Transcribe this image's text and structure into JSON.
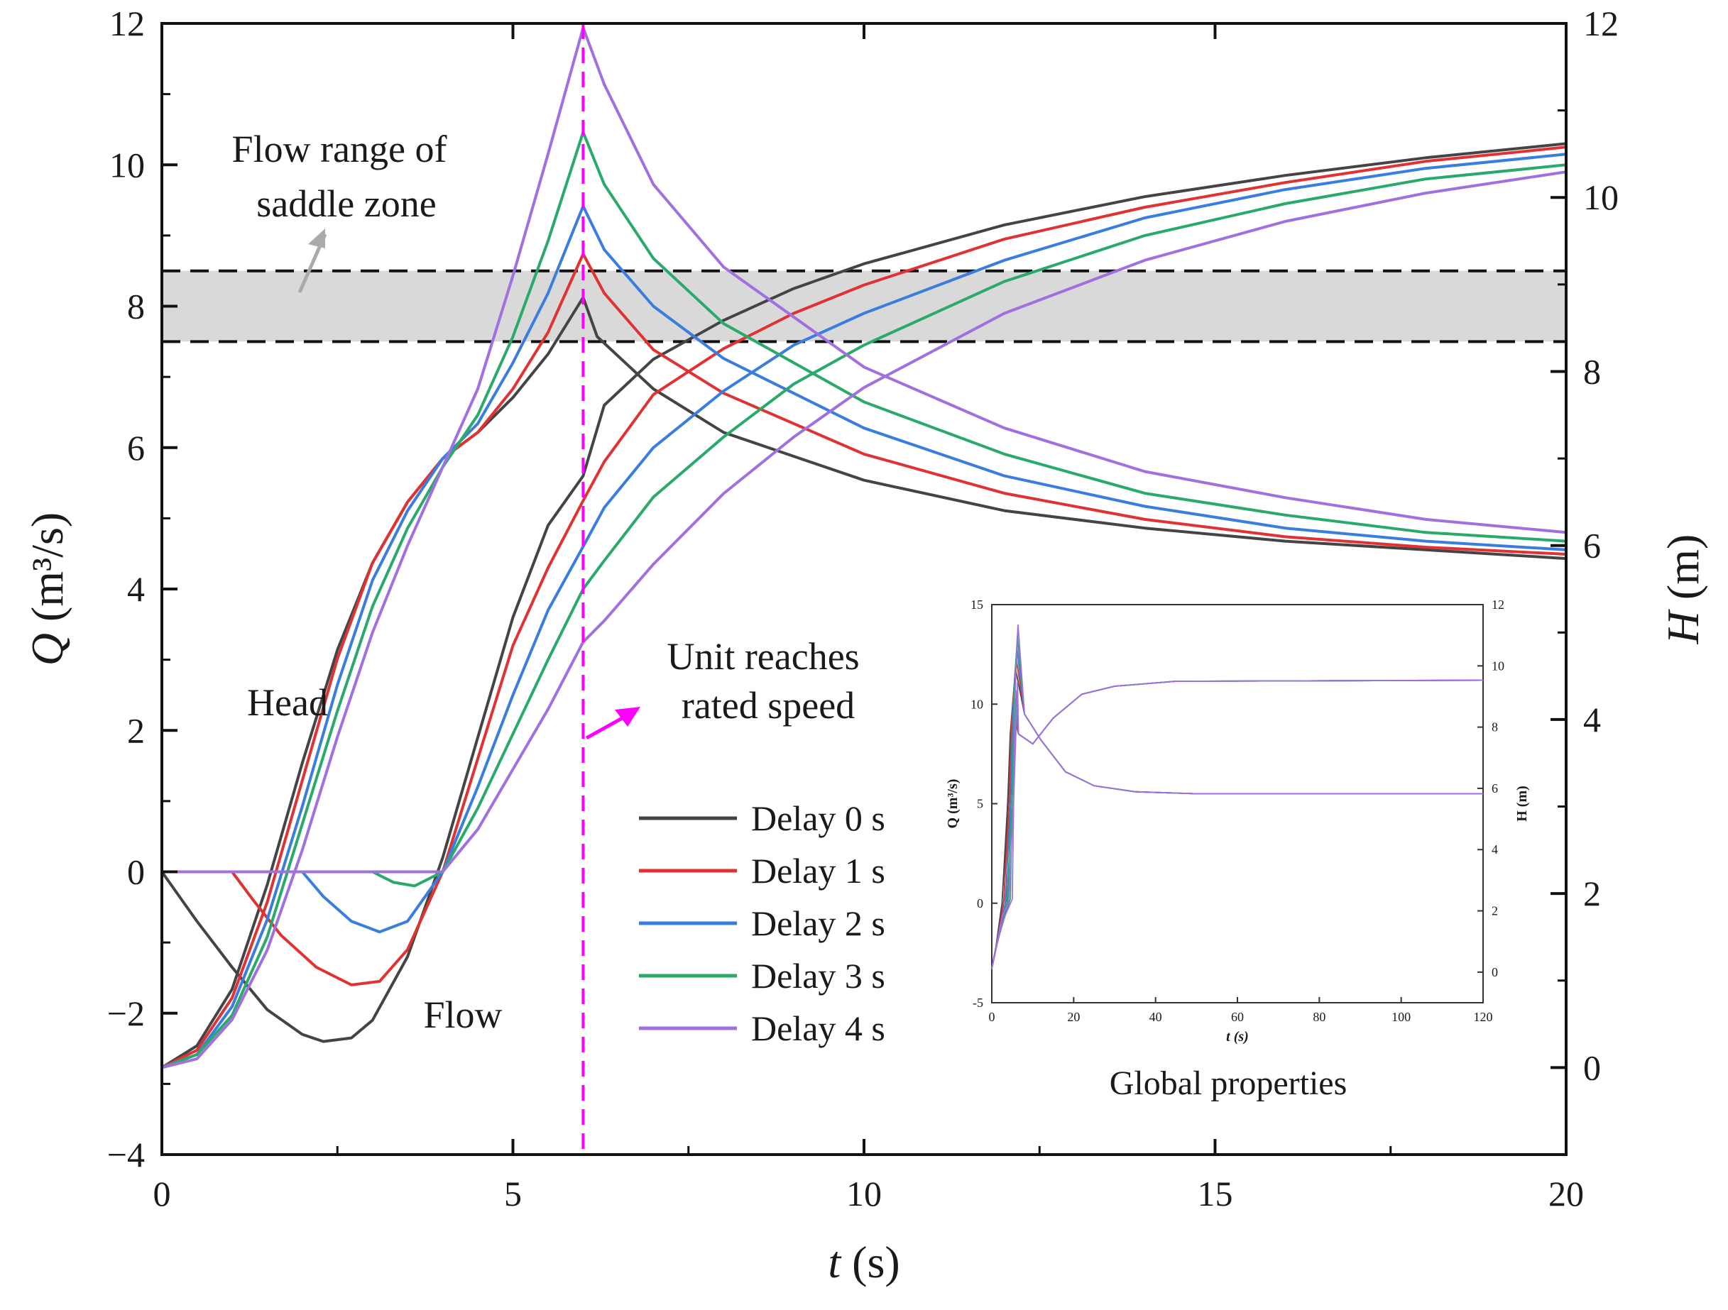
{
  "chart_data": {
    "type": "line",
    "x_axis": {
      "label_var": "t",
      "label_unit": " (s)",
      "range": [
        0,
        20
      ],
      "ticks": [
        0,
        5,
        10,
        15,
        20
      ]
    },
    "y_left": {
      "label_var": "Q",
      "label_unit": " (m³/s)",
      "range": [
        -4,
        12
      ],
      "ticks": [
        -4,
        -2,
        0,
        2,
        4,
        6,
        8,
        10,
        12
      ],
      "tick_labels": [
        "−4",
        "−2",
        "0",
        "2",
        "4",
        "6",
        "8",
        "10",
        "12"
      ]
    },
    "y_right": {
      "label_var": "H",
      "label_unit": " (m)",
      "range": [
        -1.0,
        12
      ],
      "ticks": [
        0,
        2,
        4,
        6,
        8,
        10,
        12
      ],
      "tick_labels": [
        "0",
        "2",
        "4",
        "6",
        "8",
        "10",
        "12"
      ]
    },
    "saddle_zone": {
      "q_low": 7.5,
      "q_high": 8.5,
      "label_line1": "Flow range of",
      "label_line2": "saddle zone"
    },
    "rated_speed_marker": {
      "t": 6,
      "label_line1": "Unit reaches",
      "label_line2": "rated speed"
    },
    "curve_labels": {
      "head": "Head",
      "flow": "Flow"
    },
    "series": [
      {
        "name": "Delay 0 s",
        "delay": 0,
        "color": "#444444",
        "flow": [
          [
            0,
            0
          ],
          [
            0.5,
            -0.7
          ],
          [
            1,
            -1.35
          ],
          [
            1.5,
            -1.95
          ],
          [
            2,
            -2.3
          ],
          [
            2.3,
            -2.4
          ],
          [
            2.7,
            -2.35
          ],
          [
            3,
            -2.1
          ],
          [
            3.5,
            -1.2
          ],
          [
            4,
            0.2
          ],
          [
            4.5,
            1.9
          ],
          [
            5,
            3.6
          ],
          [
            5.5,
            4.9
          ],
          [
            6,
            5.6
          ],
          [
            6.3,
            6.6
          ],
          [
            7,
            7.25
          ],
          [
            8,
            7.8
          ],
          [
            9,
            8.25
          ],
          [
            10,
            8.6
          ],
          [
            12,
            9.15
          ],
          [
            14,
            9.55
          ],
          [
            16,
            9.85
          ],
          [
            18,
            10.1
          ],
          [
            20,
            10.3
          ]
        ],
        "head": [
          [
            0,
            0
          ],
          [
            0.5,
            0.25
          ],
          [
            1,
            0.9
          ],
          [
            1.5,
            2.1
          ],
          [
            2,
            3.5
          ],
          [
            2.5,
            4.8
          ],
          [
            3,
            5.8
          ],
          [
            3.5,
            6.5
          ],
          [
            4,
            7.0
          ],
          [
            4.5,
            7.3
          ],
          [
            5,
            7.7
          ],
          [
            5.5,
            8.2
          ],
          [
            6,
            8.85
          ],
          [
            6.2,
            8.4
          ],
          [
            7,
            7.8
          ],
          [
            8,
            7.3
          ],
          [
            10,
            6.75
          ],
          [
            12,
            6.4
          ],
          [
            14,
            6.2
          ],
          [
            16,
            6.05
          ],
          [
            18,
            5.95
          ],
          [
            20,
            5.85
          ]
        ]
      },
      {
        "name": "Delay 1 s",
        "delay": 1,
        "color": "#e03232",
        "flow": [
          [
            0,
            0
          ],
          [
            1,
            0
          ],
          [
            1.3,
            -0.4
          ],
          [
            1.7,
            -0.9
          ],
          [
            2.2,
            -1.35
          ],
          [
            2.7,
            -1.6
          ],
          [
            3.1,
            -1.55
          ],
          [
            3.5,
            -1.1
          ],
          [
            4,
            0
          ],
          [
            4.5,
            1.6
          ],
          [
            5,
            3.2
          ],
          [
            5.5,
            4.3
          ],
          [
            6,
            5.25
          ],
          [
            6.3,
            5.8
          ],
          [
            7,
            6.75
          ],
          [
            8,
            7.4
          ],
          [
            9,
            7.9
          ],
          [
            10,
            8.3
          ],
          [
            12,
            8.95
          ],
          [
            14,
            9.4
          ],
          [
            16,
            9.75
          ],
          [
            18,
            10.05
          ],
          [
            20,
            10.25
          ]
        ],
        "head": [
          [
            0,
            0
          ],
          [
            0.5,
            0.2
          ],
          [
            1,
            0.8
          ],
          [
            1.5,
            1.9
          ],
          [
            2,
            3.3
          ],
          [
            2.5,
            4.7
          ],
          [
            3,
            5.8
          ],
          [
            3.5,
            6.5
          ],
          [
            4,
            7.0
          ],
          [
            4.5,
            7.3
          ],
          [
            5,
            7.8
          ],
          [
            5.5,
            8.45
          ],
          [
            6,
            9.35
          ],
          [
            6.3,
            8.9
          ],
          [
            7,
            8.25
          ],
          [
            8,
            7.75
          ],
          [
            10,
            7.05
          ],
          [
            12,
            6.6
          ],
          [
            14,
            6.3
          ],
          [
            16,
            6.1
          ],
          [
            18,
            5.98
          ],
          [
            20,
            5.9
          ]
        ]
      },
      {
        "name": "Delay 2 s",
        "delay": 2,
        "color": "#3a7de0",
        "flow": [
          [
            0,
            0
          ],
          [
            2,
            0
          ],
          [
            2.3,
            -0.35
          ],
          [
            2.7,
            -0.7
          ],
          [
            3.1,
            -0.85
          ],
          [
            3.5,
            -0.7
          ],
          [
            4,
            0
          ],
          [
            4.5,
            1.2
          ],
          [
            5,
            2.5
          ],
          [
            5.5,
            3.7
          ],
          [
            6,
            4.6
          ],
          [
            6.3,
            5.15
          ],
          [
            7,
            6.0
          ],
          [
            8,
            6.8
          ],
          [
            9,
            7.45
          ],
          [
            10,
            7.9
          ],
          [
            12,
            8.65
          ],
          [
            14,
            9.25
          ],
          [
            16,
            9.65
          ],
          [
            18,
            9.95
          ],
          [
            20,
            10.15
          ]
        ],
        "head": [
          [
            0,
            0
          ],
          [
            0.5,
            0.15
          ],
          [
            1,
            0.7
          ],
          [
            1.5,
            1.7
          ],
          [
            2,
            3.0
          ],
          [
            2.5,
            4.4
          ],
          [
            3,
            5.6
          ],
          [
            3.5,
            6.4
          ],
          [
            4,
            7.0
          ],
          [
            4.5,
            7.4
          ],
          [
            5,
            8.1
          ],
          [
            5.5,
            8.9
          ],
          [
            6,
            9.9
          ],
          [
            6.3,
            9.4
          ],
          [
            7,
            8.75
          ],
          [
            8,
            8.15
          ],
          [
            10,
            7.35
          ],
          [
            12,
            6.8
          ],
          [
            14,
            6.45
          ],
          [
            16,
            6.2
          ],
          [
            18,
            6.05
          ],
          [
            20,
            5.95
          ]
        ]
      },
      {
        "name": "Delay 3 s",
        "delay": 3,
        "color": "#2aaa6a",
        "flow": [
          [
            0,
            0
          ],
          [
            3,
            0
          ],
          [
            3.3,
            -0.15
          ],
          [
            3.6,
            -0.2
          ],
          [
            4,
            0
          ],
          [
            4.5,
            0.9
          ],
          [
            5,
            1.95
          ],
          [
            5.5,
            3.0
          ],
          [
            6,
            4.0
          ],
          [
            6.3,
            4.4
          ],
          [
            7,
            5.3
          ],
          [
            8,
            6.15
          ],
          [
            9,
            6.9
          ],
          [
            10,
            7.45
          ],
          [
            12,
            8.35
          ],
          [
            14,
            9.0
          ],
          [
            16,
            9.45
          ],
          [
            18,
            9.8
          ],
          [
            20,
            10.0
          ]
        ],
        "head": [
          [
            0,
            0
          ],
          [
            0.5,
            0.15
          ],
          [
            1,
            0.6
          ],
          [
            1.5,
            1.5
          ],
          [
            2,
            2.8
          ],
          [
            2.5,
            4.1
          ],
          [
            3,
            5.3
          ],
          [
            3.5,
            6.2
          ],
          [
            4,
            6.9
          ],
          [
            4.5,
            7.5
          ],
          [
            5,
            8.4
          ],
          [
            5.5,
            9.5
          ],
          [
            6,
            10.75
          ],
          [
            6.3,
            10.15
          ],
          [
            7,
            9.3
          ],
          [
            8,
            8.55
          ],
          [
            10,
            7.65
          ],
          [
            12,
            7.05
          ],
          [
            14,
            6.6
          ],
          [
            16,
            6.35
          ],
          [
            18,
            6.15
          ],
          [
            20,
            6.05
          ]
        ]
      },
      {
        "name": "Delay 4 s",
        "delay": 4,
        "color": "#a070e0",
        "flow": [
          [
            0,
            0
          ],
          [
            4,
            0
          ],
          [
            4.5,
            0.6
          ],
          [
            5,
            1.45
          ],
          [
            5.5,
            2.3
          ],
          [
            6,
            3.25
          ],
          [
            6.3,
            3.55
          ],
          [
            7,
            4.35
          ],
          [
            8,
            5.35
          ],
          [
            9,
            6.15
          ],
          [
            10,
            6.85
          ],
          [
            12,
            7.9
          ],
          [
            14,
            8.65
          ],
          [
            16,
            9.2
          ],
          [
            18,
            9.6
          ],
          [
            20,
            9.9
          ]
        ],
        "head": [
          [
            0,
            0
          ],
          [
            0.5,
            0.1
          ],
          [
            1,
            0.55
          ],
          [
            1.5,
            1.35
          ],
          [
            2,
            2.5
          ],
          [
            2.5,
            3.8
          ],
          [
            3,
            5.0
          ],
          [
            3.5,
            6.0
          ],
          [
            4,
            6.9
          ],
          [
            4.5,
            7.8
          ],
          [
            5,
            9.1
          ],
          [
            5.5,
            10.5
          ],
          [
            6,
            11.95
          ],
          [
            6.3,
            11.3
          ],
          [
            7,
            10.15
          ],
          [
            8,
            9.2
          ],
          [
            10,
            8.05
          ],
          [
            12,
            7.35
          ],
          [
            14,
            6.85
          ],
          [
            16,
            6.55
          ],
          [
            18,
            6.3
          ],
          [
            20,
            6.15
          ]
        ]
      }
    ],
    "inset": {
      "title": "Global properties",
      "x_label": "t (s)",
      "y_left_label": "Q (m³/s)",
      "y_right_label": "H (m)",
      "x_ticks": [
        0,
        20,
        40,
        60,
        80,
        100,
        120
      ],
      "y_left_ticks": [
        -5,
        0,
        5,
        10,
        15
      ],
      "y_right_ticks": [
        0,
        2,
        4,
        6,
        8,
        10,
        12
      ],
      "x_range": [
        0,
        120
      ],
      "y_left_range": [
        -5,
        15
      ],
      "y_right_range": [
        -1,
        12
      ],
      "flow_steady": 11.2,
      "head_steady": 5.5
    }
  }
}
